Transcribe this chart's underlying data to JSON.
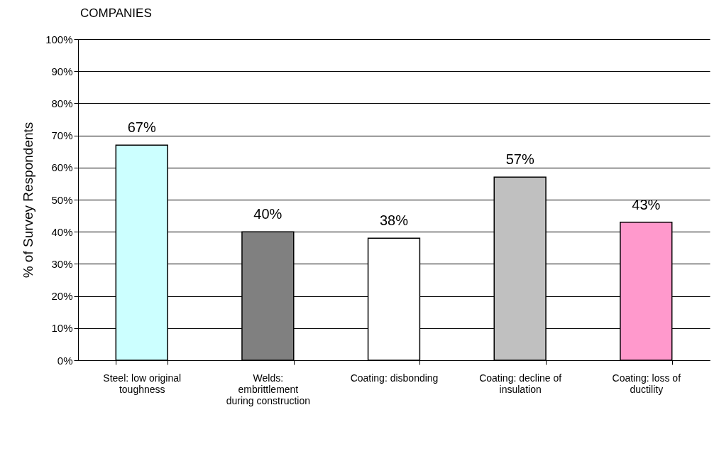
{
  "chart_data": {
    "type": "bar",
    "title": "COMPANIES",
    "ylabel": "% of Survey Respondents",
    "categories": [
      "Steel: low original toughness",
      "Welds: embrittlement during construction",
      "Coating: disbonding",
      "Coating: decline of insulation",
      "Coating: loss of ductility"
    ],
    "values": [
      67,
      40,
      38,
      57,
      43
    ],
    "colors": [
      "#ccffff",
      "#808080",
      "#ffffff",
      "#c0c0c0",
      "#ff99cc"
    ],
    "value_labels": [
      "67%",
      "40%",
      "38%",
      "57%",
      "43%"
    ],
    "ylim": [
      0,
      100
    ],
    "yticks": [
      {
        "value": 0,
        "label": "0%"
      },
      {
        "value": 10,
        "label": "10%"
      },
      {
        "value": 20,
        "label": "20%"
      },
      {
        "value": 30,
        "label": "30%"
      },
      {
        "value": 40,
        "label": "40%"
      },
      {
        "value": 50,
        "label": "50%"
      },
      {
        "value": 60,
        "label": "60%"
      },
      {
        "value": 70,
        "label": "70%"
      },
      {
        "value": 80,
        "label": "80%"
      },
      {
        "value": 90,
        "label": "90%"
      },
      {
        "value": 100,
        "label": "100%"
      }
    ],
    "grid": "y"
  }
}
